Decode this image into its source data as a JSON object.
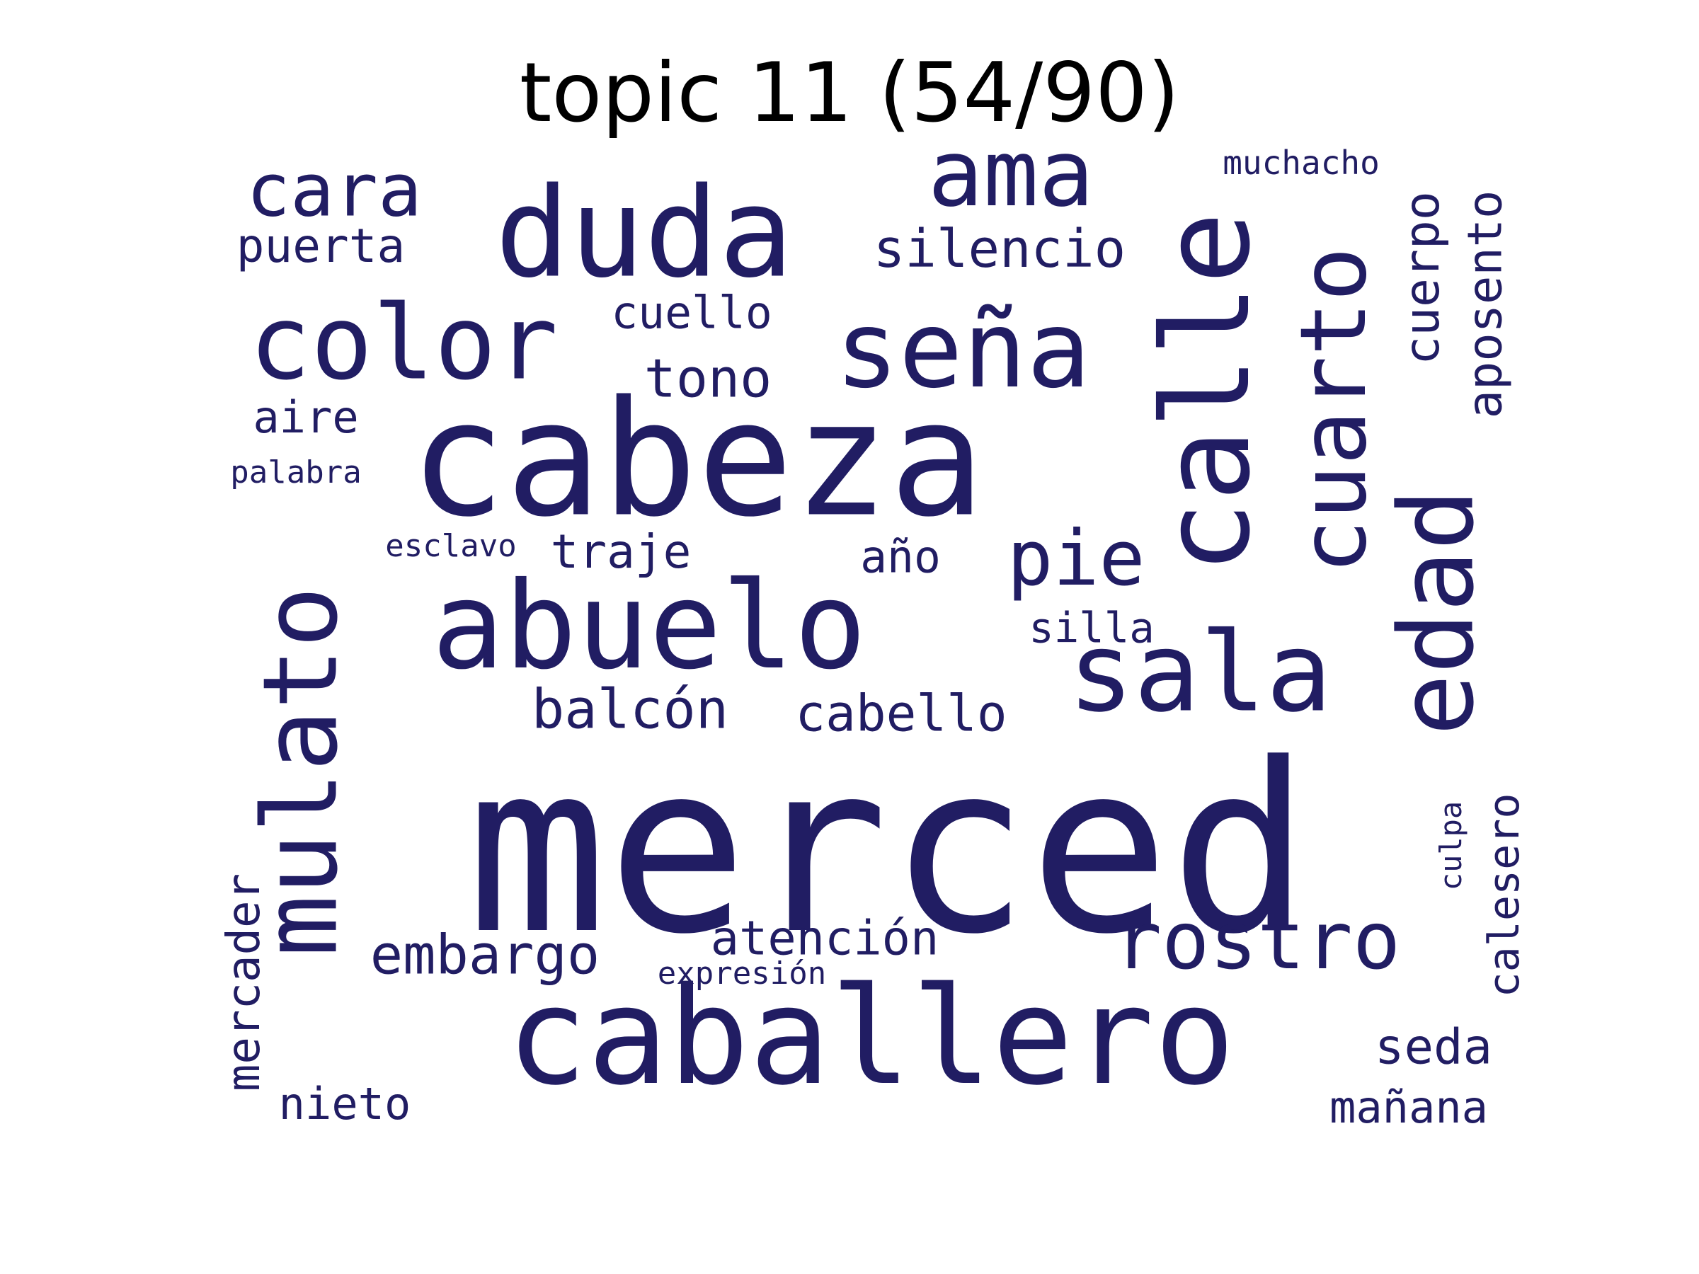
{
  "title": "topic 11 (54/90)",
  "word_color": "#211d63",
  "words": [
    {
      "text": "merced"
    },
    {
      "text": "cabeza"
    },
    {
      "text": "caballero"
    },
    {
      "text": "calle"
    },
    {
      "text": "abuelo"
    },
    {
      "text": "mulato"
    },
    {
      "text": "duda"
    },
    {
      "text": "seña"
    },
    {
      "text": "sala"
    },
    {
      "text": "edad"
    },
    {
      "text": "cuarto"
    },
    {
      "text": "color"
    },
    {
      "text": "ama"
    },
    {
      "text": "rostro"
    },
    {
      "text": "cara"
    },
    {
      "text": "pie"
    },
    {
      "text": "cuerpo"
    },
    {
      "text": "aposento"
    },
    {
      "text": "silencio"
    },
    {
      "text": "puerta"
    },
    {
      "text": "cuello"
    },
    {
      "text": "tono"
    },
    {
      "text": "aire"
    },
    {
      "text": "palabra"
    },
    {
      "text": "esclavo"
    },
    {
      "text": "traje"
    },
    {
      "text": "año"
    },
    {
      "text": "silla"
    },
    {
      "text": "balcón"
    },
    {
      "text": "cabello"
    },
    {
      "text": "embargo"
    },
    {
      "text": "atención"
    },
    {
      "text": "expresión"
    },
    {
      "text": "mercader"
    },
    {
      "text": "nieto"
    },
    {
      "text": "seda"
    },
    {
      "text": "mañana"
    },
    {
      "text": "calesero"
    },
    {
      "text": "culpa"
    },
    {
      "text": "muchacho"
    }
  ]
}
